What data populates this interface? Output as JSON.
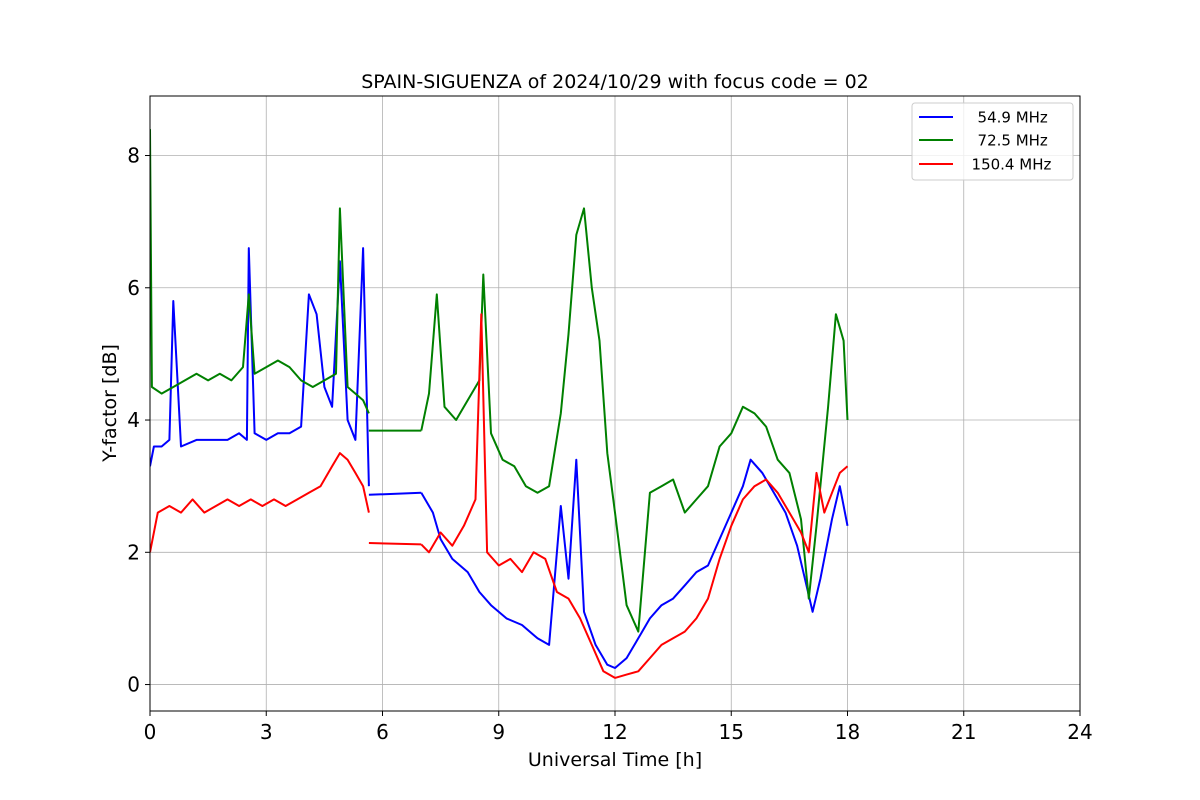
{
  "chart_data": {
    "type": "line",
    "title": "SPAIN-SIGUENZA of 2024/10/29 with focus code = 02",
    "xlabel": "Universal Time [h]",
    "ylabel": "Y-factor [dB]",
    "xlim": [
      0,
      24
    ],
    "ylim": [
      -0.4,
      8.9
    ],
    "xticks": [
      0,
      3,
      6,
      9,
      12,
      15,
      18,
      21,
      24
    ],
    "yticks": [
      0,
      2,
      4,
      6,
      8
    ],
    "grid": true,
    "legend_position": "top-right",
    "series": [
      {
        "name": "  54.9 MHz",
        "color": "#0000ff",
        "segments": [
          [
            [
              0,
              3.3
            ],
            [
              0.1,
              3.6
            ],
            [
              0.3,
              3.6
            ],
            [
              0.5,
              3.7
            ],
            [
              0.6,
              5.8
            ],
            [
              0.8,
              3.6
            ],
            [
              1.2,
              3.7
            ],
            [
              1.5,
              3.7
            ],
            [
              2.0,
              3.7
            ],
            [
              2.3,
              3.8
            ],
            [
              2.5,
              3.7
            ],
            [
              2.55,
              6.6
            ],
            [
              2.7,
              3.8
            ],
            [
              3.0,
              3.7
            ],
            [
              3.3,
              3.8
            ],
            [
              3.6,
              3.8
            ],
            [
              3.9,
              3.9
            ],
            [
              4.1,
              5.9
            ],
            [
              4.3,
              5.6
            ],
            [
              4.5,
              4.5
            ],
            [
              4.7,
              4.2
            ],
            [
              4.9,
              6.4
            ],
            [
              5.1,
              4.0
            ],
            [
              5.3,
              3.7
            ],
            [
              5.5,
              6.6
            ],
            [
              5.65,
              3.0
            ]
          ],
          [
            [
              5.65,
              2.87
            ],
            [
              7.0,
              2.9
            ]
          ],
          [
            [
              7.0,
              2.9
            ],
            [
              7.3,
              2.6
            ],
            [
              7.5,
              2.2
            ],
            [
              7.8,
              1.9
            ],
            [
              8.2,
              1.7
            ],
            [
              8.5,
              1.4
            ],
            [
              8.8,
              1.2
            ],
            [
              9.2,
              1.0
            ],
            [
              9.6,
              0.9
            ],
            [
              10.0,
              0.7
            ],
            [
              10.3,
              0.6
            ],
            [
              10.6,
              2.7
            ],
            [
              10.8,
              1.6
            ],
            [
              11.0,
              3.4
            ],
            [
              11.2,
              1.1
            ],
            [
              11.5,
              0.6
            ],
            [
              11.8,
              0.3
            ],
            [
              12.0,
              0.25
            ],
            [
              12.3,
              0.4
            ],
            [
              12.6,
              0.7
            ],
            [
              12.9,
              1.0
            ],
            [
              13.2,
              1.2
            ],
            [
              13.5,
              1.3
            ],
            [
              13.8,
              1.5
            ],
            [
              14.1,
              1.7
            ],
            [
              14.4,
              1.8
            ],
            [
              14.7,
              2.2
            ],
            [
              15.0,
              2.6
            ],
            [
              15.3,
              3.0
            ],
            [
              15.5,
              3.4
            ],
            [
              15.8,
              3.2
            ],
            [
              16.1,
              2.9
            ],
            [
              16.4,
              2.6
            ],
            [
              16.7,
              2.1
            ],
            [
              16.9,
              1.6
            ],
            [
              17.1,
              1.1
            ],
            [
              17.3,
              1.6
            ],
            [
              17.6,
              2.5
            ],
            [
              17.8,
              3.0
            ],
            [
              18.0,
              2.4
            ]
          ]
        ]
      },
      {
        "name": "  72.5 MHz",
        "color": "#008000",
        "segments": [
          [
            [
              0,
              8.4
            ],
            [
              0.05,
              4.5
            ],
            [
              0.3,
              4.4
            ],
            [
              0.6,
              4.5
            ],
            [
              0.9,
              4.6
            ],
            [
              1.2,
              4.7
            ],
            [
              1.5,
              4.6
            ],
            [
              1.8,
              4.7
            ],
            [
              2.1,
              4.6
            ],
            [
              2.4,
              4.8
            ],
            [
              2.55,
              5.9
            ],
            [
              2.7,
              4.7
            ],
            [
              3.0,
              4.8
            ],
            [
              3.3,
              4.9
            ],
            [
              3.6,
              4.8
            ],
            [
              3.9,
              4.6
            ],
            [
              4.2,
              4.5
            ],
            [
              4.5,
              4.6
            ],
            [
              4.8,
              4.7
            ],
            [
              4.9,
              7.2
            ],
            [
              5.1,
              4.5
            ],
            [
              5.3,
              4.4
            ],
            [
              5.5,
              4.3
            ],
            [
              5.65,
              4.1
            ]
          ],
          [
            [
              5.65,
              3.84
            ],
            [
              7.0,
              3.84
            ]
          ],
          [
            [
              7.0,
              3.84
            ],
            [
              7.2,
              4.4
            ],
            [
              7.4,
              5.9
            ],
            [
              7.6,
              4.2
            ],
            [
              7.9,
              4.0
            ],
            [
              8.2,
              4.3
            ],
            [
              8.5,
              4.6
            ],
            [
              8.6,
              6.2
            ],
            [
              8.8,
              3.8
            ],
            [
              9.1,
              3.4
            ],
            [
              9.4,
              3.3
            ],
            [
              9.7,
              3.0
            ],
            [
              10.0,
              2.9
            ],
            [
              10.3,
              3.0
            ],
            [
              10.6,
              4.1
            ],
            [
              10.8,
              5.3
            ],
            [
              11.0,
              6.8
            ],
            [
              11.2,
              7.2
            ],
            [
              11.4,
              6.0
            ],
            [
              11.6,
              5.2
            ],
            [
              11.8,
              3.5
            ],
            [
              12.0,
              2.6
            ],
            [
              12.3,
              1.2
            ],
            [
              12.6,
              0.8
            ],
            [
              12.9,
              2.9
            ],
            [
              13.2,
              3.0
            ],
            [
              13.5,
              3.1
            ],
            [
              13.8,
              2.6
            ],
            [
              14.1,
              2.8
            ],
            [
              14.4,
              3.0
            ],
            [
              14.7,
              3.6
            ],
            [
              15.0,
              3.8
            ],
            [
              15.3,
              4.2
            ],
            [
              15.6,
              4.1
            ],
            [
              15.9,
              3.9
            ],
            [
              16.2,
              3.4
            ],
            [
              16.5,
              3.2
            ],
            [
              16.8,
              2.5
            ],
            [
              17.0,
              1.3
            ],
            [
              17.2,
              2.4
            ],
            [
              17.5,
              4.2
            ],
            [
              17.7,
              5.6
            ],
            [
              17.9,
              5.2
            ],
            [
              18.0,
              4.0
            ]
          ]
        ]
      },
      {
        "name": "  150.4 MHz",
        "color": "#ff0000",
        "segments": [
          [
            [
              0,
              2.0
            ],
            [
              0.2,
              2.6
            ],
            [
              0.5,
              2.7
            ],
            [
              0.8,
              2.6
            ],
            [
              1.1,
              2.8
            ],
            [
              1.4,
              2.6
            ],
            [
              1.7,
              2.7
            ],
            [
              2.0,
              2.8
            ],
            [
              2.3,
              2.7
            ],
            [
              2.6,
              2.8
            ],
            [
              2.9,
              2.7
            ],
            [
              3.2,
              2.8
            ],
            [
              3.5,
              2.7
            ],
            [
              3.8,
              2.8
            ],
            [
              4.1,
              2.9
            ],
            [
              4.4,
              3.0
            ],
            [
              4.7,
              3.3
            ],
            [
              4.9,
              3.5
            ],
            [
              5.1,
              3.4
            ],
            [
              5.3,
              3.2
            ],
            [
              5.5,
              3.0
            ],
            [
              5.65,
              2.6
            ]
          ],
          [
            [
              5.65,
              2.14
            ],
            [
              7.0,
              2.12
            ]
          ],
          [
            [
              7.0,
              2.12
            ],
            [
              7.2,
              2.0
            ],
            [
              7.5,
              2.3
            ],
            [
              7.8,
              2.1
            ],
            [
              8.1,
              2.4
            ],
            [
              8.4,
              2.8
            ],
            [
              8.55,
              5.6
            ],
            [
              8.7,
              2.0
            ],
            [
              9.0,
              1.8
            ],
            [
              9.3,
              1.9
            ],
            [
              9.6,
              1.7
            ],
            [
              9.9,
              2.0
            ],
            [
              10.2,
              1.9
            ],
            [
              10.5,
              1.4
            ],
            [
              10.8,
              1.3
            ],
            [
              11.1,
              1.0
            ],
            [
              11.4,
              0.6
            ],
            [
              11.7,
              0.2
            ],
            [
              12.0,
              0.1
            ],
            [
              12.3,
              0.15
            ],
            [
              12.6,
              0.2
            ],
            [
              12.9,
              0.4
            ],
            [
              13.2,
              0.6
            ],
            [
              13.5,
              0.7
            ],
            [
              13.8,
              0.8
            ],
            [
              14.1,
              1.0
            ],
            [
              14.4,
              1.3
            ],
            [
              14.7,
              1.9
            ],
            [
              15.0,
              2.4
            ],
            [
              15.3,
              2.8
            ],
            [
              15.6,
              3.0
            ],
            [
              15.9,
              3.1
            ],
            [
              16.2,
              2.9
            ],
            [
              16.5,
              2.6
            ],
            [
              16.8,
              2.3
            ],
            [
              17.0,
              2.0
            ],
            [
              17.2,
              3.2
            ],
            [
              17.4,
              2.6
            ],
            [
              17.6,
              2.9
            ],
            [
              17.8,
              3.2
            ],
            [
              18.0,
              3.3
            ]
          ]
        ]
      }
    ]
  }
}
